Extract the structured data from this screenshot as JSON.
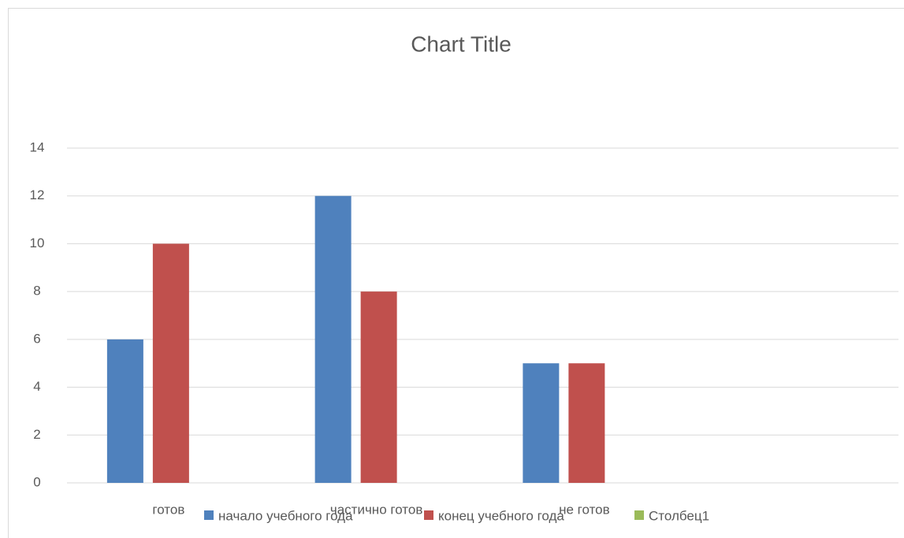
{
  "chart_data": {
    "type": "bar",
    "title": "Chart Title",
    "categories": [
      "готов",
      "частично готов",
      "не готов",
      null
    ],
    "series": [
      {
        "name": "начало учебного года",
        "color": "#4f81bd",
        "values": [
          6,
          12,
          5,
          null
        ]
      },
      {
        "name": "конец учебного года",
        "color": "#c0504d",
        "values": [
          10,
          8,
          5,
          null
        ]
      },
      {
        "name": "Столбец1",
        "color": "#9bbb59",
        "values": [
          null,
          null,
          null,
          null
        ]
      }
    ],
    "ylim": [
      0,
      14
    ],
    "yticks": [
      0,
      2,
      4,
      6,
      8,
      10,
      12,
      14
    ],
    "grid": true,
    "legend": "bottom"
  }
}
